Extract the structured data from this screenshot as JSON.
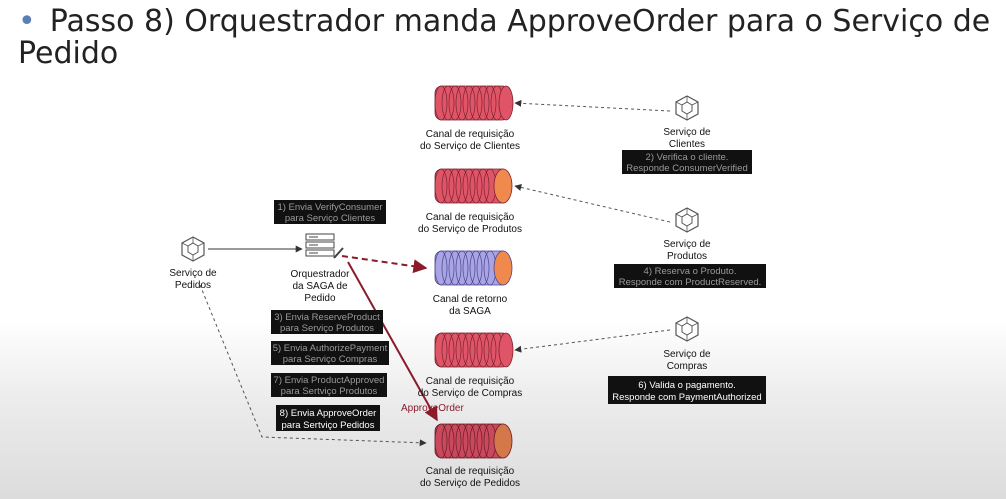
{
  "title": "Passo 8) Orquestrador manda ApproveOrder para o Serviço de Pedido",
  "colors": {
    "channel_red": "#e05468",
    "channel_blue": "#a9a4e4",
    "channel_orange": "#f0894d",
    "channel_pedidos": "#c9485b",
    "arrow_red": "#8b1a2b",
    "label_box": "#111111"
  },
  "nodes": {
    "servico_pedidos": {
      "icon": "cube-icon",
      "line1": "Serviço de",
      "line2": "Pedidos"
    },
    "orquestrador": {
      "icon": "orchestrator-icon",
      "line1": "Orquestrador",
      "line2": "da SAGA de",
      "line3": "Pedido"
    },
    "servico_clientes": {
      "icon": "cube-icon",
      "line1": "Serviço de",
      "line2": "Clientes"
    },
    "servico_produtos": {
      "icon": "cube-icon",
      "line1": "Serviço de",
      "line2": "Produtos"
    },
    "servico_compras": {
      "icon": "cube-icon",
      "line1": "Serviço de",
      "line2": "Compras"
    }
  },
  "channels": {
    "clientes": {
      "line1": "Canal de requisição",
      "line2": "do Serviço de Clientes"
    },
    "produtos": {
      "line1": "Canal de requisição",
      "line2": "do Serviço de Produtos"
    },
    "retorno": {
      "line1": "Canal de retorno",
      "line2": "da SAGA"
    },
    "compras": {
      "line1": "Canal de requisição",
      "line2": "do Serviço de Compras"
    },
    "pedidos": {
      "line1": "Canal de requisição",
      "line2": "do Serviço de Pedidos"
    }
  },
  "steps": {
    "s1": {
      "line1": "1) Envia VerifyConsumer",
      "line2": "para Serviço Clientes"
    },
    "s2": {
      "line1": "2) Verifica o cliente.",
      "line2": "Responde ConsumerVerified"
    },
    "s3": {
      "line1": "3) Envia ReserveProduct",
      "line2": "para Serviço Produtos"
    },
    "s4": {
      "line1": "4) Reserva o Produto.",
      "line2": "Responde com ProductReserved."
    },
    "s5": {
      "line1": "5) Envia AuthorizePayment",
      "line2": "para Serviço Compras"
    },
    "s6": {
      "line1": "6) Valida o pagamento.",
      "line2": "Responde com PaymentAuthorized"
    },
    "s7": {
      "line1": "7) Envia ProductApproved",
      "line2": "para Sertviço Produtos"
    },
    "s8": {
      "line1": "8) Envia ApproveOrder",
      "line2": "para Sertviço Pedidos"
    }
  },
  "arrow_label": "ApproveOrder"
}
